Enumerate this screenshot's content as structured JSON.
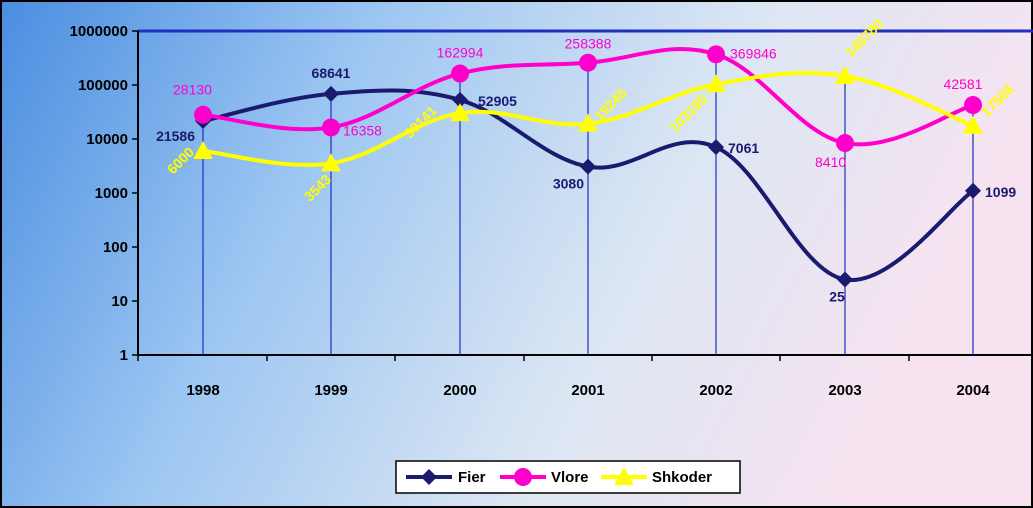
{
  "chart_data": {
    "type": "line",
    "y_scale": "log",
    "ylim": [
      1,
      1000000
    ],
    "y_ticks": [
      "1",
      "10",
      "100",
      "1000",
      "10000",
      "100000",
      "1000000"
    ],
    "categories": [
      "1998",
      "1999",
      "2000",
      "2001",
      "2002",
      "2003",
      "2004"
    ],
    "series": [
      {
        "name": "Fier",
        "color": "#1a1a6e",
        "marker": "diamond",
        "values": [
          21586,
          68641,
          52905,
          3080,
          7061,
          25,
          1099
        ],
        "labels": [
          "21586",
          "68641",
          "52905",
          "3080",
          "7061",
          "25",
          "1099"
        ]
      },
      {
        "name": "Vlore",
        "color": "#ff00cc",
        "marker": "circle",
        "values": [
          28130,
          16358,
          162994,
          258388,
          369846,
          8410,
          42581
        ],
        "labels": [
          "28130",
          "16358",
          "162994",
          "258388",
          "369846",
          "8410",
          "42581"
        ]
      },
      {
        "name": "Shkoder",
        "color": "#ffff00",
        "marker": "triangle",
        "values": [
          6000,
          3543,
          30141,
          19245,
          103195,
          146780,
          17568
        ],
        "labels": [
          "6000",
          "3543",
          "30141",
          "19245",
          "103195",
          "146780",
          "17568"
        ]
      }
    ],
    "legend_position": "bottom-center",
    "grid": false,
    "drop_lines": true
  }
}
